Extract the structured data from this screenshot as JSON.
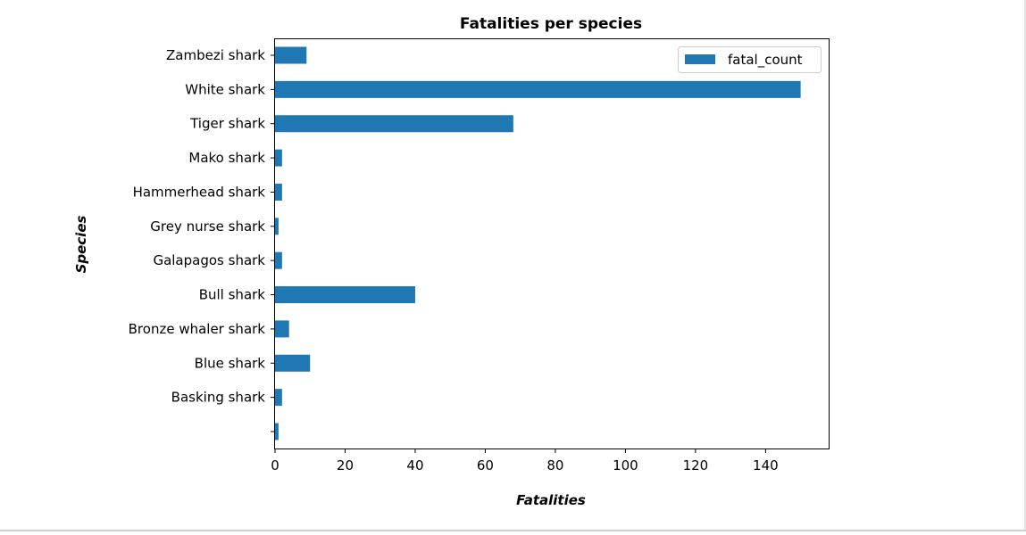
{
  "chart_data": {
    "type": "bar",
    "orientation": "horizontal",
    "title": "Fatalities per species",
    "xlabel": "Fatalities",
    "ylabel": "Species",
    "categories": [
      "",
      "Basking shark",
      "Blue shark",
      "Bronze whaler shark",
      "Bull shark",
      "Galapagos shark",
      "Grey nurse shark",
      "Hammerhead shark",
      "Mako shark",
      "Tiger shark",
      "White shark",
      "Zambezi shark"
    ],
    "series": [
      {
        "name": "fatal_count",
        "values": [
          1,
          2,
          10,
          4,
          40,
          2,
          1,
          2,
          2,
          68,
          150,
          9
        ]
      }
    ],
    "xlim": [
      0,
      158
    ],
    "xticks": [
      0,
      20,
      40,
      60,
      80,
      100,
      120,
      140
    ],
    "legend_position": "top-right",
    "grid": false,
    "color": "#1f77b4"
  }
}
